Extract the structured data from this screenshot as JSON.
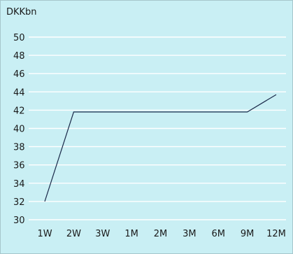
{
  "chart_data": {
    "type": "line",
    "title": "",
    "xlabel": "",
    "ylabel": "DKKbn",
    "categories": [
      "1W",
      "2W",
      "3W",
      "1M",
      "2M",
      "3M",
      "6M",
      "9M",
      "12M"
    ],
    "series": [
      {
        "values": [
          32,
          41.8,
          41.8,
          41.8,
          41.8,
          41.8,
          41.8,
          41.8,
          43.7
        ]
      }
    ],
    "ylim": [
      30,
      50
    ],
    "yticks": [
      30,
      32,
      34,
      36,
      38,
      40,
      42,
      44,
      46,
      48,
      50
    ],
    "grid": true,
    "colors": {
      "background": "#c9eff4",
      "gridline": "#ffffff",
      "line": "#1b2a4a",
      "text": "#1a1a1a"
    }
  }
}
